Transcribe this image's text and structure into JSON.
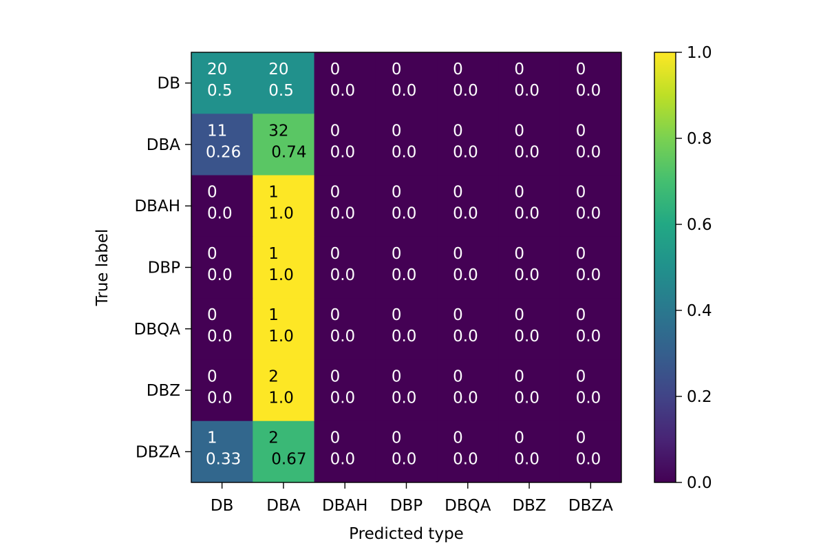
{
  "chart_data": {
    "type": "heatmap",
    "title": "",
    "xlabel": "Predicted type",
    "ylabel": "True label",
    "x_categories": [
      "DB",
      "DBA",
      "DBAH",
      "DBP",
      "DBQA",
      "DBZ",
      "DBZA"
    ],
    "y_categories": [
      "DB",
      "DBA",
      "DBAH",
      "DBP",
      "DBQA",
      "DBZ",
      "DBZA"
    ],
    "counts": [
      [
        20,
        20,
        0,
        0,
        0,
        0,
        0
      ],
      [
        11,
        32,
        0,
        0,
        0,
        0,
        0
      ],
      [
        0,
        1,
        0,
        0,
        0,
        0,
        0
      ],
      [
        0,
        1,
        0,
        0,
        0,
        0,
        0
      ],
      [
        0,
        1,
        0,
        0,
        0,
        0,
        0
      ],
      [
        0,
        2,
        0,
        0,
        0,
        0,
        0
      ],
      [
        1,
        2,
        0,
        0,
        0,
        0,
        0
      ]
    ],
    "normalized": [
      [
        "0.5",
        "0.5",
        "0.0",
        "0.0",
        "0.0",
        "0.0",
        "0.0"
      ],
      [
        "0.26",
        "0.74",
        "0.0",
        "0.0",
        "0.0",
        "0.0",
        "0.0"
      ],
      [
        "0.0",
        "1.0",
        "0.0",
        "0.0",
        "0.0",
        "0.0",
        "0.0"
      ],
      [
        "0.0",
        "1.0",
        "0.0",
        "0.0",
        "0.0",
        "0.0",
        "0.0"
      ],
      [
        "0.0",
        "1.0",
        "0.0",
        "0.0",
        "0.0",
        "0.0",
        "0.0"
      ],
      [
        "0.0",
        "1.0",
        "0.0",
        "0.0",
        "0.0",
        "0.0",
        "0.0"
      ],
      [
        "0.33",
        "0.67",
        "0.0",
        "0.0",
        "0.0",
        "0.0",
        "0.0"
      ]
    ],
    "colormap": "viridis",
    "colorbar": {
      "range": [
        0.0,
        1.0
      ],
      "ticks": [
        "0.0",
        "0.2",
        "0.4",
        "0.6",
        "0.8",
        "1.0"
      ]
    },
    "text_colors": {
      "light": "#ffffff",
      "dark": "#000000"
    },
    "grid": false
  }
}
